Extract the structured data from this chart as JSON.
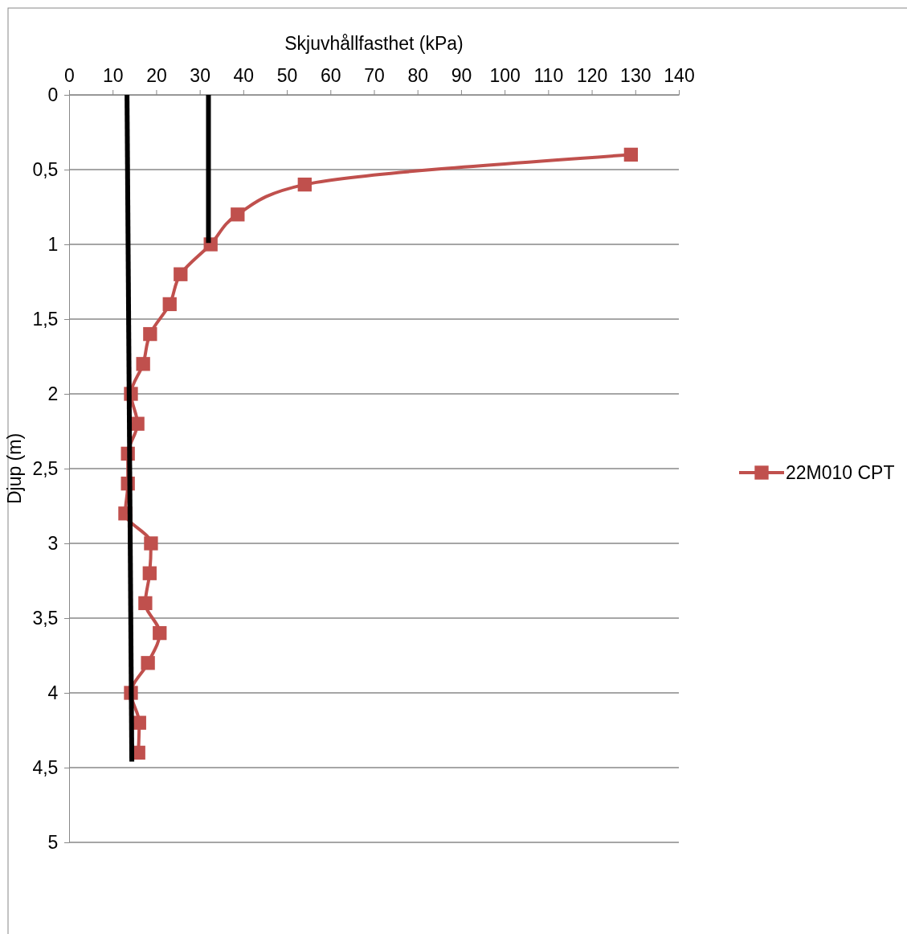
{
  "chart_data": {
    "type": "line",
    "xlabel": "Skjuvhållfasthet (kPa)",
    "ylabel": "Djup (m)",
    "xlim": [
      0,
      140
    ],
    "xticks": [
      0,
      10,
      20,
      30,
      40,
      50,
      60,
      70,
      80,
      90,
      100,
      110,
      120,
      130,
      140
    ],
    "ylim": [
      5,
      0
    ],
    "yticks": [
      0,
      {
        "value": 0.5,
        "label": "0,5"
      },
      1,
      {
        "value": 1.5,
        "label": "1,5"
      },
      2,
      {
        "value": 2.5,
        "label": "2,5"
      },
      3,
      {
        "value": 3.5,
        "label": "3,5"
      },
      4,
      {
        "value": 4.5,
        "label": "4,5"
      },
      5
    ],
    "grid": "y",
    "legend": "right",
    "line_style": "solid",
    "series": [
      {
        "name": "22M010 CPT",
        "color": "#c0504d",
        "marker": "square",
        "x": [
          129,
          54.1,
          38.7,
          32.5,
          25.6,
          23.1,
          18.6,
          17.0,
          14.2,
          15.7,
          13.5,
          13.5,
          12.9,
          18.8,
          18.5,
          17.5,
          20.8,
          18.1,
          14.2,
          16.1,
          15.9
        ],
        "values": [
          0.4,
          0.6,
          0.8,
          1.0,
          1.2,
          1.4,
          1.6,
          1.8,
          2.0,
          2.2,
          2.4,
          2.6,
          2.8,
          3.0,
          3.2,
          3.4,
          3.6,
          3.8,
          4.0,
          4.2,
          4.4
        ]
      },
      {
        "color": "#000000",
        "marker": "none",
        "x": [
          13.3,
          14.4
        ],
        "values": [
          0,
          4.46
        ]
      },
      {
        "color": "#000000",
        "marker": "none",
        "x": [
          32,
          32
        ],
        "values": [
          0,
          0.99
        ]
      }
    ]
  }
}
